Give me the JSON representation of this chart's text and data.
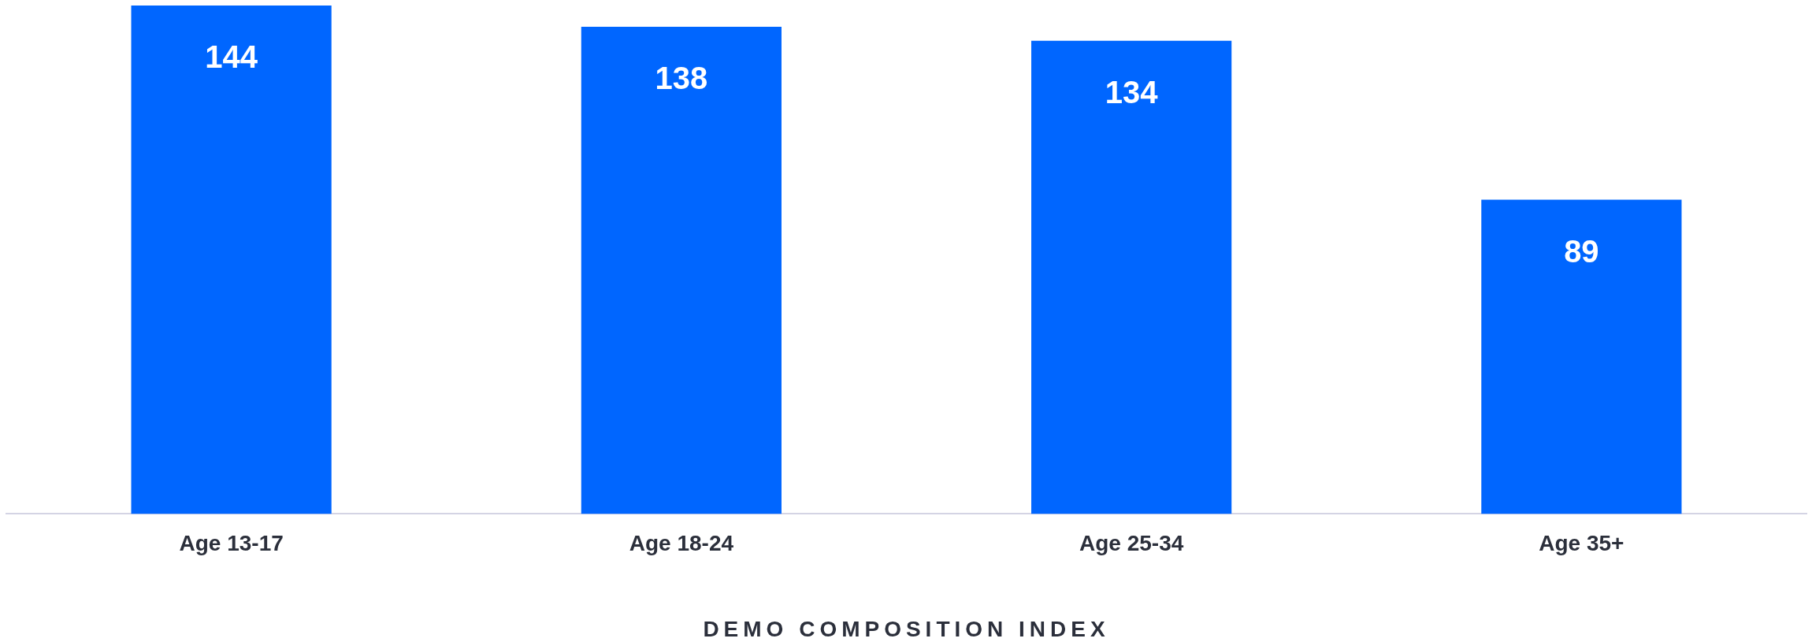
{
  "chart_data": {
    "type": "bar",
    "xlabel": "DEMO COMPOSITION INDEX",
    "categories": [
      "Age 13-17",
      "Age 18-24",
      "Age 25-34",
      "Age 35+"
    ],
    "values": [
      144,
      138,
      134,
      89
    ],
    "color": "#0066ff",
    "data_labels": true,
    "grid": false,
    "legend": false
  }
}
